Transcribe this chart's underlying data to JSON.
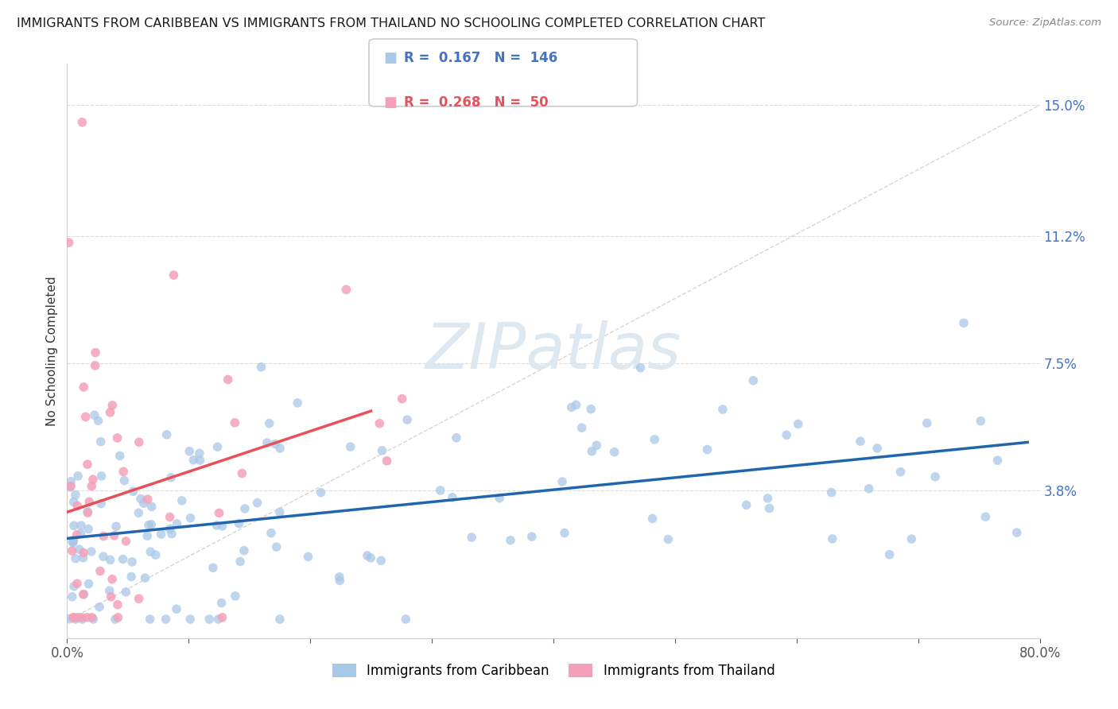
{
  "title": "IMMIGRANTS FROM CARIBBEAN VS IMMIGRANTS FROM THAILAND NO SCHOOLING COMPLETED CORRELATION CHART",
  "source": "Source: ZipAtlas.com",
  "ylabel": "No Schooling Completed",
  "xlim": [
    0.0,
    0.8
  ],
  "ylim": [
    -0.005,
    0.162
  ],
  "xtick_positions": [
    0.0,
    0.1,
    0.2,
    0.3,
    0.4,
    0.5,
    0.6,
    0.7,
    0.8
  ],
  "xtick_labels": [
    "0.0%",
    "",
    "",
    "",
    "",
    "",
    "",
    "",
    "80.0%"
  ],
  "ytick_labels": [
    "3.8%",
    "7.5%",
    "11.2%",
    "15.0%"
  ],
  "ytick_values": [
    0.038,
    0.075,
    0.112,
    0.15
  ],
  "legend": {
    "blue_r": "0.167",
    "blue_n": "146",
    "pink_r": "0.268",
    "pink_n": "50"
  },
  "blue_color": "#a8c8e8",
  "pink_color": "#f4a0b8",
  "blue_line_color": "#2166ac",
  "pink_line_color": "#e8505a",
  "diag_line_color": "#cccccc",
  "background_color": "#ffffff",
  "grid_color": "#dddddd",
  "watermark_color": "#dde8f0",
  "title_color": "#1a1a1a",
  "source_color": "#888888",
  "ytick_color": "#4472c4",
  "xtick_color": "#555555"
}
